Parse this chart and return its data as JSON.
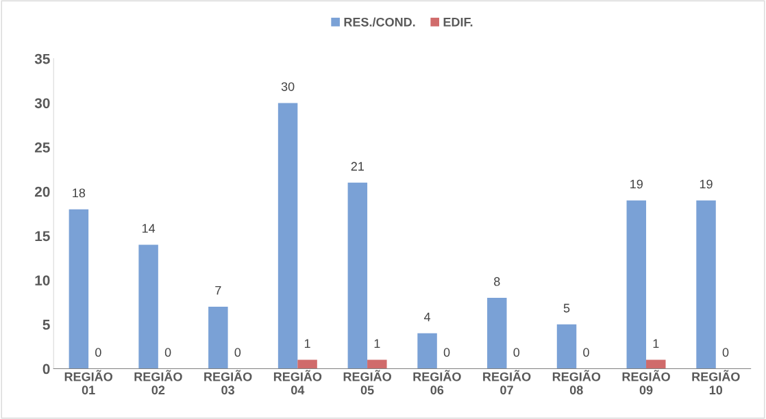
{
  "chart_data": {
    "type": "bar",
    "categories": [
      "REGIÃO 01",
      "REGIÃO 02",
      "REGIÃO 03",
      "REGIÃO 04",
      "REGIÃO 05",
      "REGIÃO 06",
      "REGIÃO 07",
      "REGIÃO 08",
      "REGIÃO 09",
      "REGIÃO 10"
    ],
    "series": [
      {
        "name": "RES./COND.",
        "color": "#7aa1d6",
        "values": [
          18,
          14,
          7,
          30,
          21,
          4,
          8,
          5,
          19,
          19
        ]
      },
      {
        "name": "EDIF.",
        "color": "#d06b6b",
        "values": [
          0,
          0,
          0,
          1,
          1,
          0,
          0,
          0,
          1,
          0
        ]
      }
    ],
    "ylim": [
      0,
      35
    ],
    "yticks": [
      0,
      5,
      10,
      15,
      20,
      25,
      30,
      35
    ],
    "data_labels": true,
    "legend": "top",
    "grid": false
  }
}
